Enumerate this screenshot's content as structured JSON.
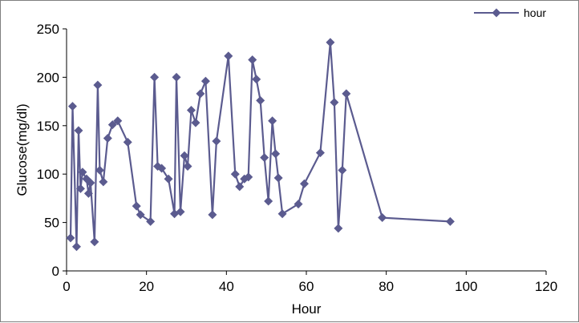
{
  "chart_data": {
    "type": "line",
    "xlabel": "Hour",
    "ylabel": "Glucose(mg/dl)",
    "xlim": [
      0,
      120
    ],
    "ylim": [
      0,
      250
    ],
    "xticks": [
      "0",
      "20",
      "40",
      "60",
      "80",
      "100",
      "120"
    ],
    "yticks": [
      "0",
      "50",
      "100",
      "150",
      "200",
      "250"
    ],
    "grid": false,
    "legend_position": "top-right",
    "series": [
      {
        "name": "hour",
        "color": "#5b5b8f",
        "marker": "diamond",
        "points": [
          [
            1,
            34
          ],
          [
            1.5,
            170
          ],
          [
            2.5,
            25
          ],
          [
            3,
            145
          ],
          [
            3.5,
            85
          ],
          [
            4,
            102
          ],
          [
            5,
            95
          ],
          [
            5.5,
            80
          ],
          [
            6,
            91
          ],
          [
            7,
            30
          ],
          [
            7.8,
            192
          ],
          [
            8.3,
            104
          ],
          [
            9.2,
            92
          ],
          [
            10.3,
            137
          ],
          [
            11.5,
            151
          ],
          [
            12.8,
            155
          ],
          [
            15.3,
            133
          ],
          [
            17.5,
            67
          ],
          [
            18.5,
            58
          ],
          [
            21,
            51
          ],
          [
            22,
            200
          ],
          [
            22.8,
            108
          ],
          [
            23.8,
            106
          ],
          [
            25.5,
            95
          ],
          [
            27,
            59
          ],
          [
            27.5,
            200
          ],
          [
            28.5,
            61
          ],
          [
            29.5,
            119
          ],
          [
            30.3,
            108
          ],
          [
            31.2,
            166
          ],
          [
            32.3,
            153
          ],
          [
            33.5,
            183
          ],
          [
            34.8,
            196
          ],
          [
            36.5,
            58
          ],
          [
            37.5,
            134
          ],
          [
            40.5,
            222
          ],
          [
            42.2,
            100
          ],
          [
            43.3,
            87
          ],
          [
            44.5,
            95
          ],
          [
            45.5,
            97
          ],
          [
            46.5,
            218
          ],
          [
            47.5,
            198
          ],
          [
            48.5,
            176
          ],
          [
            49.5,
            117
          ],
          [
            50.5,
            72
          ],
          [
            51.5,
            155
          ],
          [
            52.3,
            121
          ],
          [
            53,
            96
          ],
          [
            54,
            59
          ],
          [
            58,
            69
          ],
          [
            59.5,
            90
          ],
          [
            63.5,
            122
          ],
          [
            66,
            236
          ],
          [
            67,
            174
          ],
          [
            68,
            44
          ],
          [
            69,
            104
          ],
          [
            70,
            183
          ],
          [
            79,
            55
          ],
          [
            96,
            51
          ]
        ]
      }
    ]
  }
}
